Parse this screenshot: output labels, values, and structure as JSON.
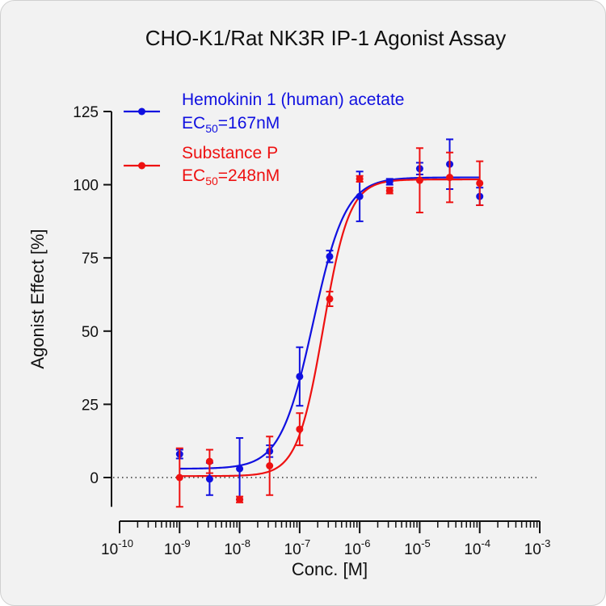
{
  "chart_data": {
    "type": "scatter",
    "title": "CHO-K1/Rat NK3R IP-1 Agonist Assay",
    "xlabel": "Conc. [M]",
    "ylabel": "Agonist Effect [%]",
    "x_scale": "log10",
    "xlim": [
      1e-10,
      0.001
    ],
    "ylim": [
      -10,
      125
    ],
    "y_ticks": [
      0,
      25,
      50,
      75,
      100,
      125
    ],
    "x_tick_exponents": [
      -10,
      -9,
      -8,
      -7,
      -6,
      -5,
      -4,
      -3
    ],
    "x_tick_base": "10",
    "reference_line": {
      "y": 0,
      "style": "dotted"
    },
    "legend_position": "top-left",
    "series": [
      {
        "name": "Hemokinin 1 (human) acetate",
        "ec50_label": "EC",
        "ec50_sub": "50",
        "ec50_value": "=167nM",
        "color": "#1010e0",
        "points": [
          {
            "x": 1e-09,
            "y": 8,
            "err": 1.5
          },
          {
            "x": 3.16e-09,
            "y": -0.5,
            "err": 5.5
          },
          {
            "x": 1e-08,
            "y": 3,
            "err": 10.5
          },
          {
            "x": 3.16e-08,
            "y": 9,
            "err": 2
          },
          {
            "x": 1e-07,
            "y": 34.5,
            "err": 10
          },
          {
            "x": 3.16e-07,
            "y": 75.5,
            "err": 2
          },
          {
            "x": 1e-06,
            "y": 96,
            "err": 8.5
          },
          {
            "x": 3.16e-06,
            "y": 101,
            "err": 1
          },
          {
            "x": 1e-05,
            "y": 105.5,
            "err": 2
          },
          {
            "x": 3.16e-05,
            "y": 107,
            "err": 8.5
          },
          {
            "x": 0.0001,
            "y": 96,
            "err": 3
          }
        ],
        "fit": {
          "bottom": 3,
          "top": 102.5,
          "logec50": -6.777,
          "hill": 1.6
        }
      },
      {
        "name": "Substance P",
        "ec50_label": "EC",
        "ec50_sub": "50",
        "ec50_value": "=248nM",
        "color": "#ee1111",
        "points": [
          {
            "x": 1e-09,
            "y": 0,
            "err": 10
          },
          {
            "x": 3.16e-09,
            "y": 5.5,
            "err": 4
          },
          {
            "x": 1e-08,
            "y": -7.5,
            "err": 1
          },
          {
            "x": 3.16e-08,
            "y": 4,
            "err": 10
          },
          {
            "x": 1e-07,
            "y": 16.5,
            "err": 5.5
          },
          {
            "x": 3.16e-07,
            "y": 61,
            "err": 2.5
          },
          {
            "x": 1e-06,
            "y": 102,
            "err": 1
          },
          {
            "x": 3.16e-06,
            "y": 98,
            "err": 1
          },
          {
            "x": 1e-05,
            "y": 101.5,
            "err": 11
          },
          {
            "x": 3.16e-05,
            "y": 102.5,
            "err": 8.5
          },
          {
            "x": 0.0001,
            "y": 100.5,
            "err": 7.5
          }
        ],
        "fit": {
          "bottom": 0.5,
          "top": 101.8,
          "logec50": -6.606,
          "hill": 2.0
        }
      }
    ]
  }
}
